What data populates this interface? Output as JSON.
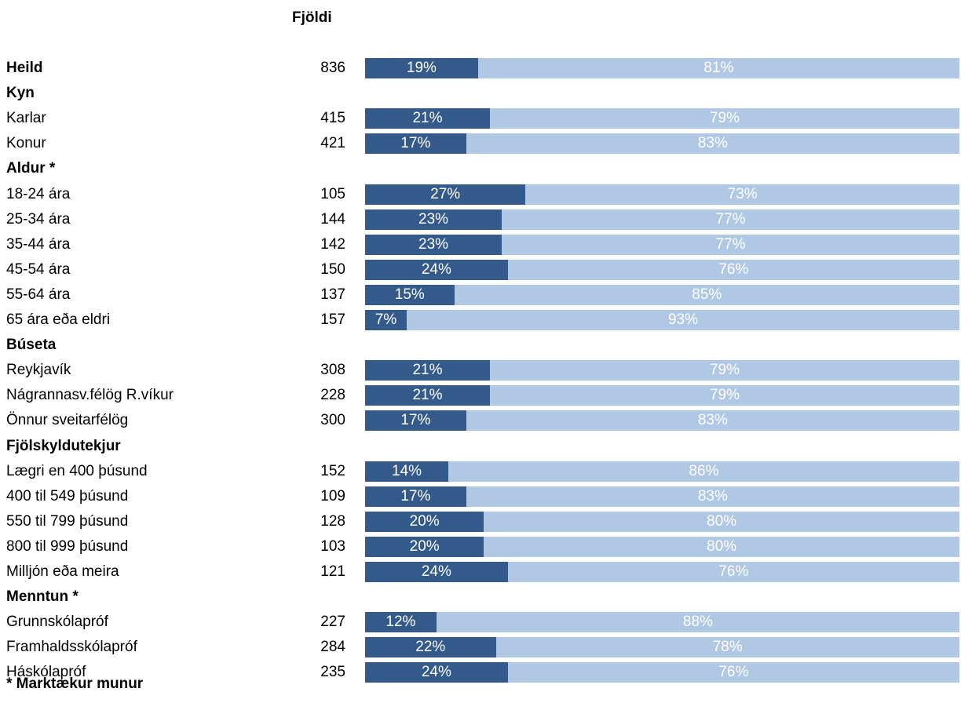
{
  "chart_data": {
    "type": "bar",
    "column_header": "Fjöldi",
    "footnote": "* Marktækur munur",
    "colors": {
      "dark": "#335a8a",
      "light": "#b0c8e4"
    },
    "rows": [
      {
        "label": "Heild",
        "bold": true,
        "n": "836",
        "values": [
          19,
          81
        ]
      },
      {
        "label": "Kyn",
        "bold": true
      },
      {
        "label": "Karlar",
        "n": "415",
        "values": [
          21,
          79
        ]
      },
      {
        "label": "Konur",
        "n": "421",
        "values": [
          17,
          83
        ]
      },
      {
        "label": "Aldur *",
        "bold": true
      },
      {
        "label": "18-24 ára",
        "n": "105",
        "values": [
          27,
          73
        ]
      },
      {
        "label": "25-34 ára",
        "n": "144",
        "values": [
          23,
          77
        ]
      },
      {
        "label": "35-44 ára",
        "n": "142",
        "values": [
          23,
          77
        ]
      },
      {
        "label": "45-54 ára",
        "n": "150",
        "values": [
          24,
          76
        ]
      },
      {
        "label": "55-64 ára",
        "n": "137",
        "values": [
          15,
          85
        ]
      },
      {
        "label": "65 ára eða eldri",
        "n": "157",
        "values": [
          7,
          93
        ]
      },
      {
        "label": "Búseta",
        "bold": true
      },
      {
        "label": "Reykjavík",
        "n": "308",
        "values": [
          21,
          79
        ]
      },
      {
        "label": "Nágrannasv.félög R.víkur",
        "n": "228",
        "values": [
          21,
          79
        ]
      },
      {
        "label": "Önnur sveitarfélög",
        "n": "300",
        "values": [
          17,
          83
        ]
      },
      {
        "label": "Fjölskyldutekjur",
        "bold": true
      },
      {
        "label": "Lægri en 400 þúsund",
        "n": "152",
        "values": [
          14,
          86
        ]
      },
      {
        "label": "400 til 549 þúsund",
        "n": "109",
        "values": [
          17,
          83
        ]
      },
      {
        "label": "550 til 799 þúsund",
        "n": "128",
        "values": [
          20,
          80
        ]
      },
      {
        "label": "800 til 999 þúsund",
        "n": "103",
        "values": [
          20,
          80
        ]
      },
      {
        "label": "Milljón eða meira",
        "n": "121",
        "values": [
          24,
          76
        ]
      },
      {
        "label": "Menntun *",
        "bold": true
      },
      {
        "label": "Grunnskólapróf",
        "n": "227",
        "values": [
          12,
          88
        ]
      },
      {
        "label": "Framhaldsskólapróf",
        "n": "284",
        "values": [
          22,
          78
        ]
      },
      {
        "label": "Háskólapróf",
        "n": "235",
        "values": [
          24,
          76
        ]
      }
    ]
  }
}
